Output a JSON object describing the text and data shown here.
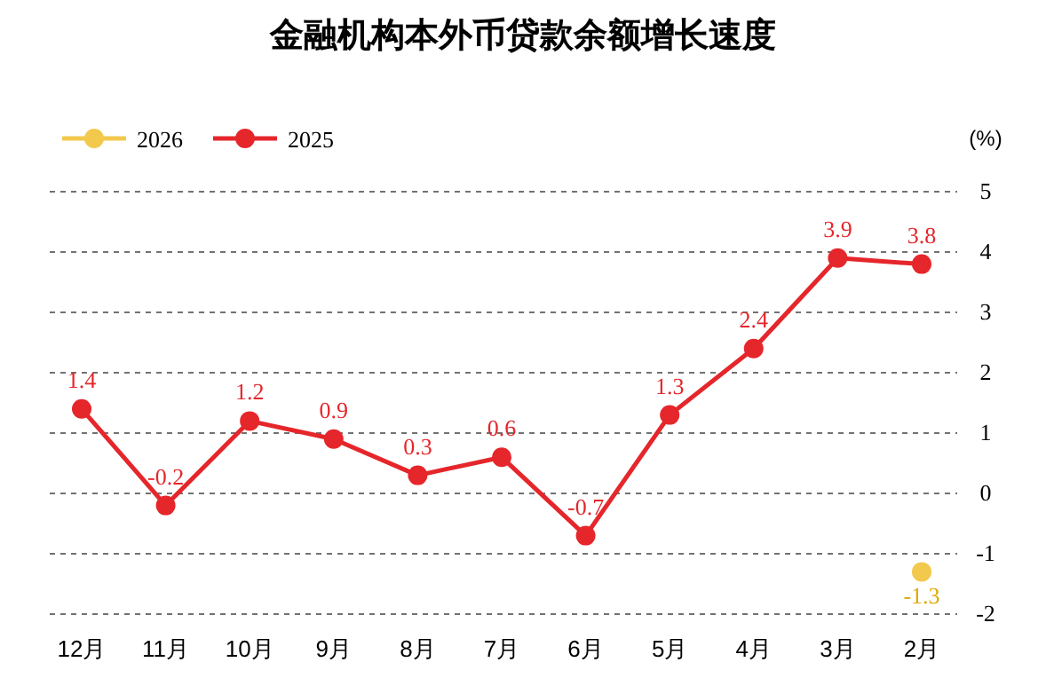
{
  "chart_data": {
    "type": "line",
    "title": "金融机构本外币贷款余额增长速度",
    "ylabel": "(%)",
    "categories": [
      "12月",
      "11月",
      "10月",
      "9月",
      "8月",
      "7月",
      "6月",
      "5月",
      "4月",
      "3月",
      "2月"
    ],
    "series": [
      {
        "name": "2026",
        "color": "#f2c94c",
        "values": [
          null,
          null,
          null,
          null,
          null,
          null,
          null,
          null,
          null,
          null,
          -1.3
        ]
      },
      {
        "name": "2025",
        "color": "#e5262b",
        "values": [
          1.4,
          -0.2,
          1.2,
          0.9,
          0.3,
          0.6,
          -0.7,
          1.3,
          2.4,
          3.9,
          3.8
        ]
      }
    ],
    "ylim": [
      -2,
      5
    ],
    "yticks": [
      -2,
      -1,
      0,
      1,
      2,
      3,
      4,
      5
    ],
    "grid": "y",
    "legend": "top left",
    "marker": "circle",
    "line_style": "solid",
    "data_labels": true
  }
}
